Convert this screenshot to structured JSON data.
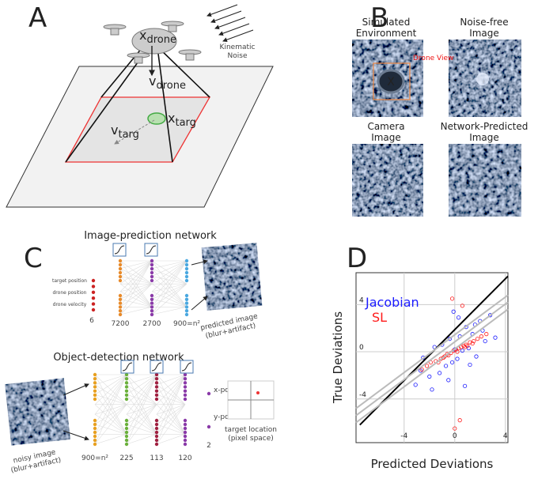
{
  "panel_labels": [
    "A",
    "B",
    "C",
    "D"
  ],
  "panel_a": {
    "x_drone": {
      "base": "x",
      "sub": "drone"
    },
    "v_drone": {
      "base": "v",
      "sub": "drone"
    },
    "x_targ": {
      "base": "x",
      "sub": "targ"
    },
    "v_targ": {
      "base": "v",
      "sub": "targ"
    },
    "kinematic_noise": [
      "Kinematic",
      "Noise"
    ]
  },
  "panel_b": {
    "titles": [
      [
        "Simulated",
        "Environment"
      ],
      [
        "Noise-free",
        "Image"
      ],
      [
        "Camera",
        "Image"
      ],
      [
        "Network-Predicted",
        "Image"
      ]
    ],
    "drone_view": "Drone View",
    "marker": "X"
  },
  "panel_c": {
    "top_title": "Image-prediction network",
    "inputs": [
      "target position",
      "drone position",
      "drone velocity"
    ],
    "top_sizes": [
      "6",
      "7200",
      "2700",
      "900=n²"
    ],
    "predicted": [
      "predicted image",
      "(blur+artifact)"
    ],
    "bottom_title": "Object-detection network",
    "noisy": [
      "noisy image",
      "(blur+artifact)"
    ],
    "bottom_sizes": [
      "900=n²",
      "225",
      "113",
      "120",
      "2"
    ],
    "outputs": [
      "x-pos",
      "y-pos"
    ],
    "target": [
      "target location",
      "(pixel space)"
    ]
  },
  "chart_data": {
    "type": "scatter",
    "xlabel": "Predicted Deviations",
    "ylabel": "True Deviations",
    "xlim": [
      -7.8,
      4.2
    ],
    "ylim": [
      -7.7,
      6.7
    ],
    "xticks": [
      -4,
      0,
      4
    ],
    "yticks": [
      -4,
      0,
      4
    ],
    "grid": true,
    "legend": "upper left",
    "series": [
      {
        "name": "Jacobian",
        "color": "#1a1aff",
        "x": [
          -3.1,
          -2.5,
          -2,
          -1.6,
          -1.2,
          -1,
          -0.7,
          -0.4,
          -0.2,
          0,
          0.2,
          0.4,
          0.6,
          0.9,
          1.1,
          1.4,
          1.7,
          2,
          2.4,
          2.8,
          -1.8,
          -0.5,
          0.3,
          1.2,
          2.2,
          -2.7,
          0.8,
          -0.1,
          1.6,
          3.2
        ],
        "values": [
          -2.8,
          -0.5,
          -2.1,
          0.4,
          -1.8,
          0.6,
          -1.2,
          1.1,
          -0.9,
          0.2,
          -0.6,
          1.3,
          0.1,
          2.1,
          0.3,
          1.5,
          -0.4,
          2.6,
          0.9,
          3.1,
          -3.2,
          -2.4,
          2.9,
          -1.1,
          1.8,
          -1.6,
          -2.9,
          3.4,
          2.3,
          1.2
        ]
      },
      {
        "name": "SL",
        "color": "#ff1a1a",
        "x": [
          -2.6,
          -2.2,
          -1.9,
          -1.5,
          -1.1,
          -0.8,
          -0.6,
          -0.3,
          -0.1,
          0.1,
          0.3,
          0.5,
          0.7,
          0.9,
          1.2,
          1.5,
          1.8,
          2.1,
          2.5,
          0,
          -0.2,
          0.4,
          0.6,
          -1.3,
          1,
          0.2,
          -0.5,
          1.4,
          -0.9,
          0.8
        ],
        "values": [
          -1.5,
          -1.2,
          -0.9,
          -0.8,
          -0.6,
          -0.4,
          -0.2,
          -0.1,
          0.1,
          0.2,
          0.3,
          0.4,
          0.5,
          0.6,
          0.8,
          0.9,
          1.1,
          1.3,
          1.5,
          -6.5,
          4.5,
          -5.8,
          3.9,
          -0.9,
          0.5,
          0,
          -0.3,
          0.7,
          -0.5,
          0.4
        ]
      }
    ],
    "lines": [
      {
        "color": "#000000",
        "x": [
          -7.5,
          4.2
        ],
        "values": [
          -6.2,
          6.4
        ]
      },
      {
        "color": "#bbbbbb",
        "x": [
          -7.8,
          4.2
        ],
        "values": [
          -4.8,
          4.8
        ]
      },
      {
        "color": "#bbbbbb",
        "x": [
          -7.8,
          4.2
        ],
        "values": [
          -5.4,
          4.2
        ]
      },
      {
        "color": "#bbbbbb",
        "x": [
          -7.8,
          4.2
        ],
        "values": [
          -6,
          3.6
        ]
      }
    ]
  }
}
